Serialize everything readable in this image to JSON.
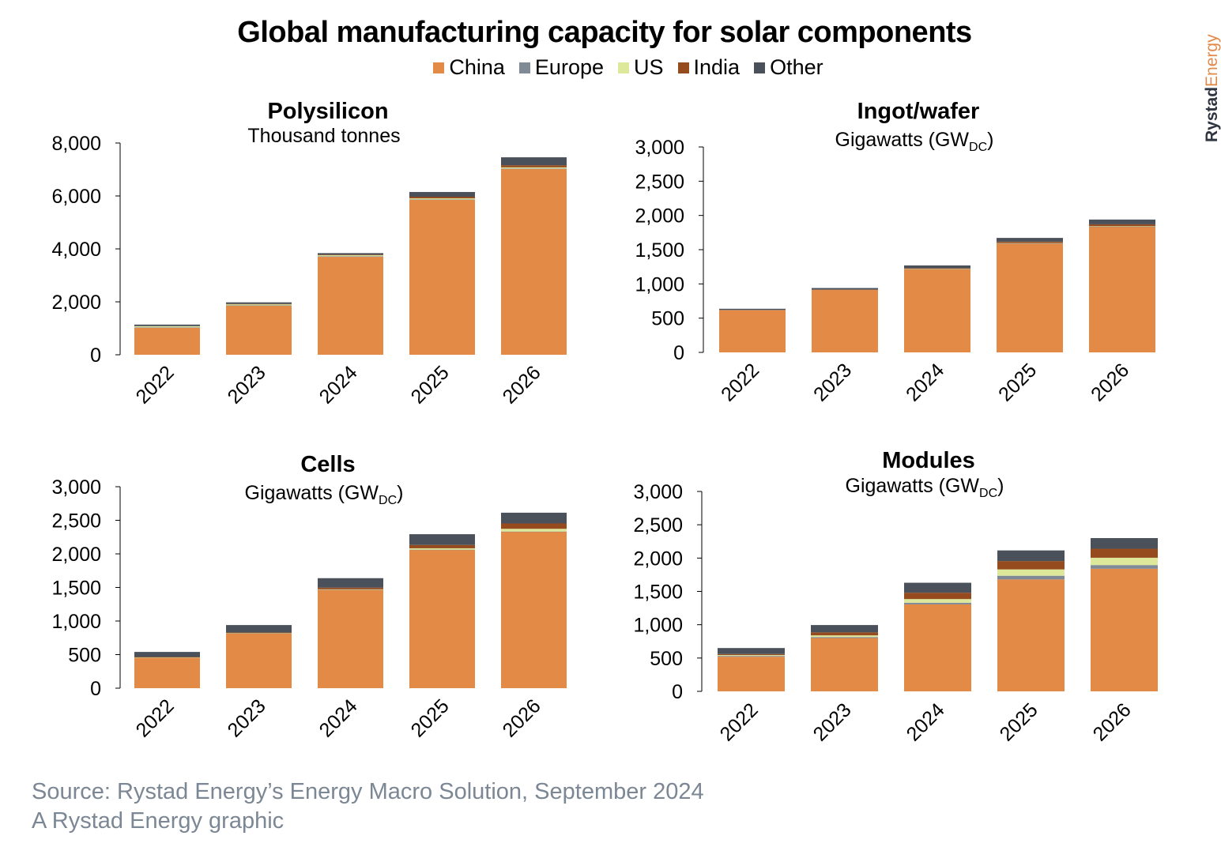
{
  "title": "Global manufacturing capacity for solar components",
  "legend": [
    {
      "name": "China",
      "color": "#e38a47"
    },
    {
      "name": "Europe",
      "color": "#7f8a96"
    },
    {
      "name": "US",
      "color": "#dde89a"
    },
    {
      "name": "India",
      "color": "#964b1e"
    },
    {
      "name": "Other",
      "color": "#4b515b"
    }
  ],
  "brand": {
    "part1": "Rystad",
    "part2": "Energy"
  },
  "source": {
    "line1": "Source: Rystad Energy’s Energy Macro Solution, September 2024",
    "line2": "A Rystad Energy graphic"
  },
  "chart_data": [
    {
      "type": "bar",
      "stacked": true,
      "title": "Polysilicon",
      "ylabel": "Thousand tonnes",
      "categories": [
        "2022",
        "2023",
        "2024",
        "2025",
        "2026"
      ],
      "ylim": [
        0,
        8000
      ],
      "yticks": [
        "0",
        "2,000",
        "4,000",
        "6,000",
        "8,000"
      ],
      "series": [
        {
          "name": "China",
          "values": [
            1020,
            1850,
            3700,
            5850,
            7020
          ]
        },
        {
          "name": "Europe",
          "values": [
            20,
            20,
            20,
            20,
            20
          ]
        },
        {
          "name": "US",
          "values": [
            40,
            40,
            40,
            40,
            40
          ]
        },
        {
          "name": "India",
          "values": [
            0,
            10,
            20,
            60,
            80
          ]
        },
        {
          "name": "Other",
          "values": [
            60,
            60,
            60,
            180,
            300
          ]
        }
      ]
    },
    {
      "type": "bar",
      "stacked": true,
      "title": "Ingot/wafer",
      "ylabel": "Gigawatts (GW",
      "ylabel_sub": "DC",
      "ylabel_end": ")",
      "categories": [
        "2022",
        "2023",
        "2024",
        "2025",
        "2026"
      ],
      "ylim": [
        0,
        3000
      ],
      "yticks": [
        "0",
        "500",
        "1,000",
        "1,500",
        "2,000",
        "2,500",
        "3,000"
      ],
      "series": [
        {
          "name": "China",
          "values": [
            620,
            915,
            1215,
            1590,
            1835
          ]
        },
        {
          "name": "Europe",
          "values": [
            2,
            2,
            2,
            2,
            2
          ]
        },
        {
          "name": "US",
          "values": [
            0,
            0,
            3,
            5,
            5
          ]
        },
        {
          "name": "India",
          "values": [
            0,
            3,
            10,
            20,
            28
          ]
        },
        {
          "name": "Other",
          "values": [
            15,
            20,
            40,
            55,
            70
          ]
        }
      ]
    },
    {
      "type": "bar",
      "stacked": true,
      "title": "Cells",
      "ylabel": "Gigawatts (GW",
      "ylabel_sub": "DC",
      "ylabel_end": ")",
      "categories": [
        "2022",
        "2023",
        "2024",
        "2025",
        "2026"
      ],
      "ylim": [
        0,
        3000
      ],
      "yticks": [
        "0",
        "500",
        "1,000",
        "1,500",
        "2,000",
        "2,500",
        "3,000"
      ],
      "series": [
        {
          "name": "China",
          "values": [
            455,
            815,
            1465,
            2060,
            2330
          ]
        },
        {
          "name": "Europe",
          "values": [
            3,
            3,
            3,
            3,
            3
          ]
        },
        {
          "name": "US",
          "values": [
            2,
            2,
            5,
            20,
            40
          ]
        },
        {
          "name": "India",
          "values": [
            5,
            10,
            25,
            50,
            80
          ]
        },
        {
          "name": "Other",
          "values": [
            75,
            110,
            140,
            160,
            160
          ]
        }
      ]
    },
    {
      "type": "bar",
      "stacked": true,
      "title": "Modules",
      "ylabel": "Gigawatts (GW",
      "ylabel_sub": "DC",
      "ylabel_end": ")",
      "categories": [
        "2022",
        "2023",
        "2024",
        "2025",
        "2026"
      ],
      "ylim": [
        0,
        3000
      ],
      "yticks": [
        "0",
        "500",
        "1,000",
        "1,500",
        "2,000",
        "2,500",
        "3,000"
      ],
      "series": [
        {
          "name": "China",
          "values": [
            520,
            800,
            1305,
            1680,
            1840
          ]
        },
        {
          "name": "Europe",
          "values": [
            12,
            15,
            25,
            55,
            55
          ]
        },
        {
          "name": "US",
          "values": [
            13,
            25,
            55,
            95,
            110
          ]
        },
        {
          "name": "India",
          "values": [
            15,
            45,
            95,
            125,
            135
          ]
        },
        {
          "name": "Other",
          "values": [
            90,
            110,
            150,
            160,
            160
          ]
        }
      ]
    }
  ]
}
